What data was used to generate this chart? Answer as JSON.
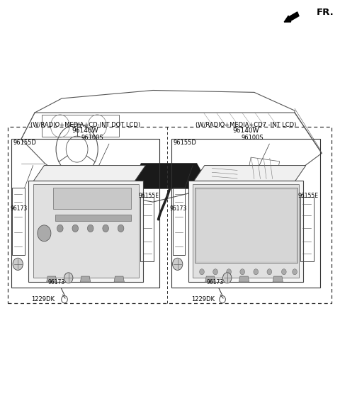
{
  "bg_color": "#ffffff",
  "fig_width": 4.8,
  "fig_height": 5.76,
  "dpi": 100,
  "fr_label": "FR.",
  "font_size_title": 6.5,
  "font_size_part": 6.0,
  "font_size_fr": 9.5,
  "font_size_small": 5.5,
  "line_color": "#333333",
  "text_color": "#000000",
  "left_title1": "(W/RADIO+MEDIA+CD-INT DOT LCD)",
  "left_title2": "96140W",
  "right_title1": "(W/RADIO+MEDIA+CD7 -INT LCD)",
  "right_title2": "96140W"
}
